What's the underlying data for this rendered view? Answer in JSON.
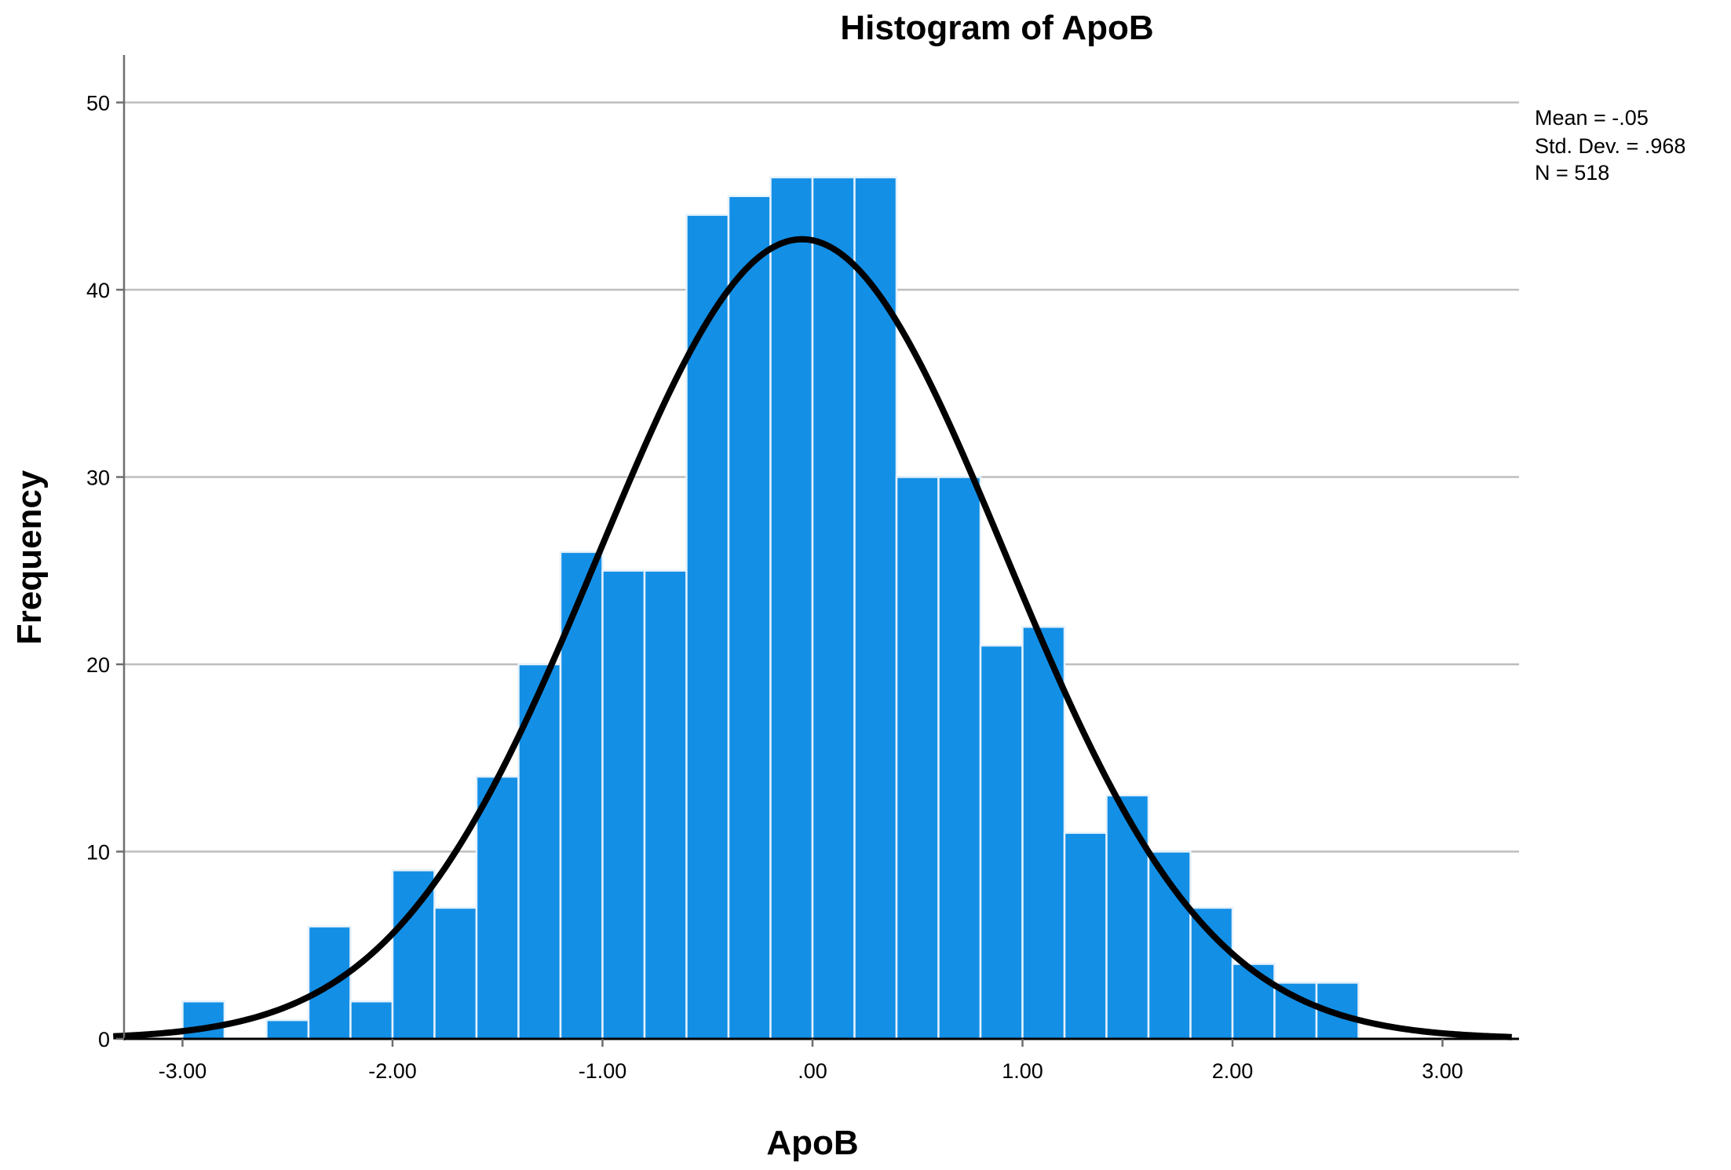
{
  "chart_data": {
    "type": "bar",
    "title": "Histogram of ApoB",
    "xlabel": "ApoB",
    "ylabel": "Frequency",
    "xlim": [
      -3.33,
      3.33
    ],
    "ylim": [
      0,
      52.5
    ],
    "bin_width": 0.2,
    "bins": [
      {
        "x0": -3.0,
        "x1": -2.8,
        "count": 2
      },
      {
        "x0": -2.6,
        "x1": -2.4,
        "count": 1
      },
      {
        "x0": -2.4,
        "x1": -2.2,
        "count": 6
      },
      {
        "x0": -2.2,
        "x1": -2.0,
        "count": 2
      },
      {
        "x0": -2.0,
        "x1": -1.8,
        "count": 9
      },
      {
        "x0": -1.8,
        "x1": -1.6,
        "count": 7
      },
      {
        "x0": -1.6,
        "x1": -1.4,
        "count": 14
      },
      {
        "x0": -1.4,
        "x1": -1.2,
        "count": 20
      },
      {
        "x0": -1.2,
        "x1": -1.0,
        "count": 26
      },
      {
        "x0": -1.0,
        "x1": -0.8,
        "count": 25
      },
      {
        "x0": -0.8,
        "x1": -0.6,
        "count": 25
      },
      {
        "x0": -0.6,
        "x1": -0.4,
        "count": 44
      },
      {
        "x0": -0.4,
        "x1": -0.2,
        "count": 45
      },
      {
        "x0": -0.2,
        "x1": 0.0,
        "count": 46
      },
      {
        "x0": 0.0,
        "x1": 0.2,
        "count": 46
      },
      {
        "x0": 0.2,
        "x1": 0.4,
        "count": 46
      },
      {
        "x0": 0.4,
        "x1": 0.6,
        "count": 30
      },
      {
        "x0": 0.6,
        "x1": 0.8,
        "count": 30
      },
      {
        "x0": 0.8,
        "x1": 1.0,
        "count": 21
      },
      {
        "x0": 1.0,
        "x1": 1.2,
        "count": 22
      },
      {
        "x0": 1.2,
        "x1": 1.4,
        "count": 11
      },
      {
        "x0": 1.4,
        "x1": 1.6,
        "count": 13
      },
      {
        "x0": 1.6,
        "x1": 1.8,
        "count": 10
      },
      {
        "x0": 1.8,
        "x1": 2.0,
        "count": 7
      },
      {
        "x0": 2.0,
        "x1": 2.2,
        "count": 4
      },
      {
        "x0": 2.2,
        "x1": 2.4,
        "count": 3
      },
      {
        "x0": 2.4,
        "x1": 2.6,
        "count": 3
      }
    ],
    "x_ticks": [
      {
        "value": -3.0,
        "label": "-3.00"
      },
      {
        "value": -2.0,
        "label": "-2.00"
      },
      {
        "value": -1.0,
        "label": "-1.00"
      },
      {
        "value": 0.0,
        "label": ".00"
      },
      {
        "value": 1.0,
        "label": "1.00"
      },
      {
        "value": 2.0,
        "label": "2.00"
      },
      {
        "value": 3.0,
        "label": "3.00"
      }
    ],
    "y_ticks": [
      {
        "value": 0,
        "label": "0"
      },
      {
        "value": 10,
        "label": "10"
      },
      {
        "value": 20,
        "label": "20"
      },
      {
        "value": 30,
        "label": "30"
      },
      {
        "value": 40,
        "label": "40"
      },
      {
        "value": 50,
        "label": "50"
      }
    ],
    "grid": "horizontal",
    "normal_curve": {
      "mean": -0.05,
      "std": 0.968,
      "n": 518
    },
    "stats": [
      "Mean = -.05",
      "Std. Dev. = .968",
      "N = 518"
    ],
    "colors": {
      "bar": "#138FE6",
      "bar_edge": "#E6F2FB",
      "curve": "#000000",
      "grid": "#BEBEBE",
      "axis": "#6E6E6E"
    }
  }
}
